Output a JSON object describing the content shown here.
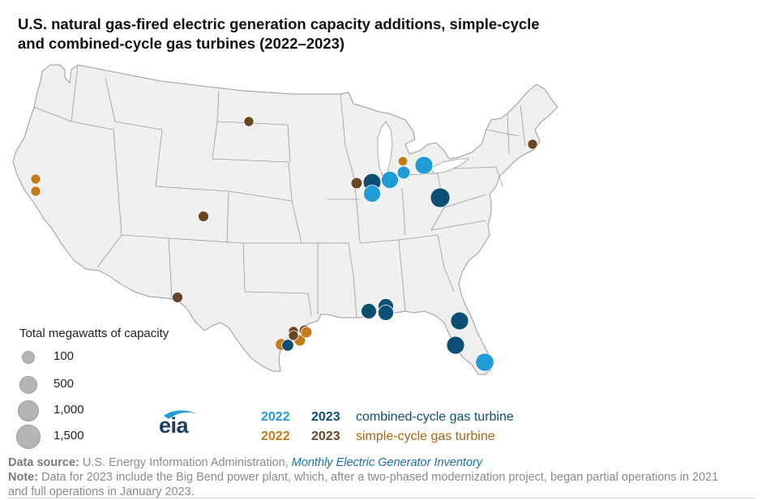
{
  "title": "U.S. natural gas-fired electric generation capacity additions, simple-cycle and combined-cycle gas turbines (2022–2023)",
  "size_legend": {
    "title": "Total megawatts of capacity",
    "items": [
      {
        "label": "100",
        "mw": 100
      },
      {
        "label": "500",
        "mw": 500
      },
      {
        "label": "1,000",
        "mw": 1000
      },
      {
        "label": "1,500",
        "mw": 1500
      }
    ]
  },
  "color_legend": {
    "year_2022": "2022",
    "year_2023": "2023",
    "combined_cycle": "combined-cycle gas turbine",
    "simple_cycle": "simple-cycle gas turbine"
  },
  "colors": {
    "cc_2022": "#1f9bd7",
    "cc_2023": "#0d4f74",
    "sc_2022": "#c47a18",
    "sc_2023": "#6b4421",
    "land": "#efefef",
    "border": "#9a9a9a"
  },
  "logo": {
    "text": "eia"
  },
  "source": {
    "label": "Data source:",
    "text": "U.S. Energy Information Administration,",
    "italic": "Monthly Electric Generator Inventory"
  },
  "note": {
    "label": "Note:",
    "text": "Data for 2023 include the Big Bend power plant, which, after a two-phased modernization project, began partial operations in 2021 and full operations in January 2023."
  },
  "plants": [
    {
      "region": "North Dakota",
      "type": "simple-cycle",
      "year": "2023",
      "mw": 100
    },
    {
      "region": "Northern California",
      "type": "simple-cycle",
      "year": "2022",
      "mw": 100
    },
    {
      "region": "Northern California",
      "type": "simple-cycle",
      "year": "2022",
      "mw": 100
    },
    {
      "region": "Colorado",
      "type": "simple-cycle",
      "year": "2023",
      "mw": 150
    },
    {
      "region": "West Texas",
      "type": "simple-cycle",
      "year": "2023",
      "mw": 150
    },
    {
      "region": "Massachusetts",
      "type": "simple-cycle",
      "year": "2023",
      "mw": 100
    },
    {
      "region": "Michigan",
      "type": "simple-cycle",
      "year": "2022",
      "mw": 80
    },
    {
      "region": "Illinois",
      "type": "simple-cycle",
      "year": "2023",
      "mw": 200
    },
    {
      "region": "Illinois",
      "type": "combined-cycle",
      "year": "2023",
      "mw": 1100
    },
    {
      "region": "Illinois",
      "type": "combined-cycle",
      "year": "2022",
      "mw": 1000
    },
    {
      "region": "Indiana",
      "type": "combined-cycle",
      "year": "2022",
      "mw": 1000
    },
    {
      "region": "Indiana",
      "type": "combined-cycle",
      "year": "2022",
      "mw": 350
    },
    {
      "region": "Michigan",
      "type": "combined-cycle",
      "year": "2022",
      "mw": 1150
    },
    {
      "region": "Ohio",
      "type": "combined-cycle",
      "year": "2023",
      "mw": 1500
    },
    {
      "region": "Mississippi",
      "type": "combined-cycle",
      "year": "2023",
      "mw": 700
    },
    {
      "region": "Alabama",
      "type": "combined-cycle",
      "year": "2023",
      "mw": 700
    },
    {
      "region": "Alabama",
      "type": "combined-cycle",
      "year": "2023",
      "mw": 700
    },
    {
      "region": "Georgia/Florida",
      "type": "combined-cycle",
      "year": "2023",
      "mw": 1150
    },
    {
      "region": "Florida",
      "type": "combined-cycle",
      "year": "2023",
      "mw": 1150
    },
    {
      "region": "Florida",
      "type": "combined-cycle",
      "year": "2022",
      "mw": 1200
    },
    {
      "region": "Texas Gulf Coast",
      "type": "simple-cycle",
      "year": "2023",
      "mw": 200
    },
    {
      "region": "Texas Gulf Coast",
      "type": "simple-cycle",
      "year": "2022",
      "mw": 200
    },
    {
      "region": "Texas Gulf Coast",
      "type": "simple-cycle",
      "year": "2023",
      "mw": 100
    },
    {
      "region": "Texas Gulf Coast",
      "type": "simple-cycle",
      "year": "2023",
      "mw": 100
    },
    {
      "region": "Texas Gulf Coast",
      "type": "simple-cycle",
      "year": "2022",
      "mw": 250
    },
    {
      "region": "Texas Gulf Coast",
      "type": "combined-cycle",
      "year": "2023",
      "mw": 250
    },
    {
      "region": "Texas Gulf Coast",
      "type": "simple-cycle",
      "year": "2022",
      "mw": 200
    }
  ]
}
